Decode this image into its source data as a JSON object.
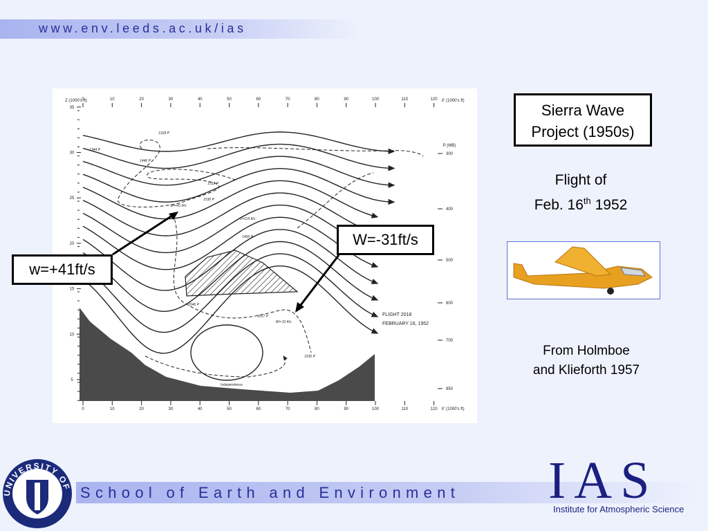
{
  "header": {
    "url": "www.env.leeds.ac.uk/ias"
  },
  "figure": {
    "x_ticks": [
      0,
      10,
      20,
      30,
      40,
      50,
      60,
      70,
      80,
      90,
      100,
      110,
      120
    ],
    "x_axis_label": "X' (1000's ft)",
    "y_axis_label": "Z (1000's ft)",
    "y_ticks": [
      5,
      10,
      15,
      20,
      25,
      30,
      35
    ],
    "p_axis_label": "P (MB)",
    "p_ticks": [
      300,
      400,
      500,
      600,
      700,
      850
    ],
    "flight_title": "FLIGHT 2018",
    "flight_date": "FEBRUARY 16, 1952",
    "place_label": "Independence",
    "annotations": [
      "1318 P",
      "1344 P",
      "1446 P",
      "1512 P",
      "1530 P",
      "w=+41 ft/s",
      "U=115 ft/s",
      "1400 P",
      "1546 P",
      "1617 P",
      "W=-31 ft/s",
      "1530 P"
    ]
  },
  "callouts": {
    "up": "w=+41ft/s",
    "down": "W=-31ft/s"
  },
  "title_box": [
    "Sierra Wave",
    "Project (1950s)"
  ],
  "flight": {
    "line1": "Flight of",
    "line2_pre": "Feb. 16",
    "line2_sup": "th",
    "line2_post": " 1952"
  },
  "source": [
    "From Holmboe",
    "and Klieforth 1957"
  ],
  "footer": {
    "school": "School of Earth and Environment",
    "logo": "UNIVERSITY OF LEEDS",
    "ias": "IAS",
    "institute": "Institute for Atmospheric Science"
  }
}
